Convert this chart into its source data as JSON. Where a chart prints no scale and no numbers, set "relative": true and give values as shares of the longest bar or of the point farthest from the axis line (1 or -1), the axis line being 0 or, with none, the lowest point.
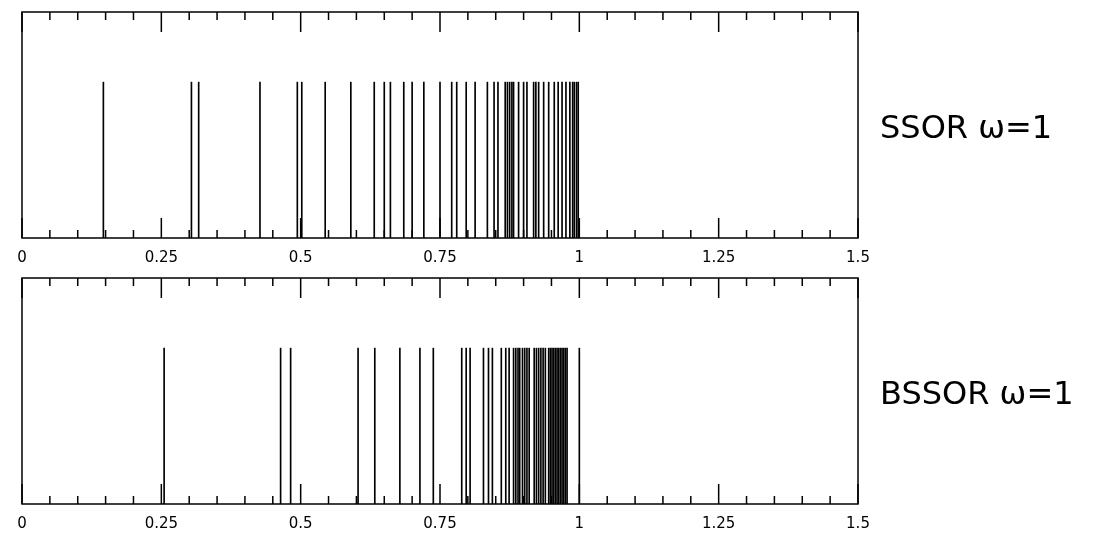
{
  "chart_data": [
    {
      "type": "bar",
      "title": "SSOR ω=1",
      "relative": true,
      "tick_labels": "x",
      "xlim": [
        0,
        1.5
      ],
      "xticks": [
        0,
        {
          "value": 0.05,
          "label": null
        },
        {
          "value": 0.1,
          "label": null
        },
        {
          "value": 0.15,
          "label": null
        },
        {
          "value": 0.2,
          "label": null
        },
        0.25,
        {
          "value": 0.3,
          "label": null
        },
        {
          "value": 0.35,
          "label": null
        },
        {
          "value": 0.4,
          "label": null
        },
        {
          "value": 0.45,
          "label": null
        },
        0.5,
        {
          "value": 0.55,
          "label": null
        },
        {
          "value": 0.6,
          "label": null
        },
        {
          "value": 0.65,
          "label": null
        },
        {
          "value": 0.7,
          "label": null
        },
        0.75,
        {
          "value": 0.8,
          "label": null
        },
        {
          "value": 0.85,
          "label": null
        },
        {
          "value": 0.9,
          "label": null
        },
        {
          "value": 0.95,
          "label": null
        },
        1,
        {
          "value": 1.05,
          "label": null
        },
        {
          "value": 1.1,
          "label": null
        },
        {
          "value": 1.15,
          "label": null
        },
        {
          "value": 1.2,
          "label": null
        },
        1.25,
        {
          "value": 1.3,
          "label": null
        },
        {
          "value": 1.35,
          "label": null
        },
        {
          "value": 1.4,
          "label": null
        },
        {
          "value": 1.45,
          "label": null
        },
        1.5
      ],
      "series": [
        {
          "color": "#000000",
          "x": [
            0.146,
            0.304,
            0.317,
            0.427,
            0.494,
            0.502,
            0.544,
            0.59,
            0.632,
            0.65,
            0.661,
            0.685,
            0.7,
            0.721,
            0.75,
            0.771,
            0.78,
            0.797,
            0.813,
            0.835,
            0.847,
            0.854,
            0.867,
            0.871,
            0.875,
            0.879,
            0.882,
            0.891,
            0.9,
            0.906,
            0.918,
            0.922,
            0.927,
            0.936,
            0.945,
            0.955,
            0.962,
            0.969,
            0.976,
            0.983,
            0.988,
            0.991,
            0.995,
            0.998
          ],
          "values": [
            1,
            1,
            1,
            1,
            1,
            1,
            1,
            1,
            1,
            1,
            1,
            1,
            1,
            1,
            1,
            1,
            1,
            1,
            1,
            1,
            1,
            1,
            1,
            1,
            1,
            1,
            1,
            1,
            1,
            1,
            1,
            1,
            1,
            1,
            1,
            1,
            1,
            1,
            1,
            1,
            1,
            1,
            1,
            1
          ]
        }
      ]
    },
    {
      "type": "bar",
      "title": "BSSOR ω=1",
      "relative": true,
      "tick_labels": "x",
      "xlim": [
        0,
        1.5
      ],
      "xticks": [
        0,
        {
          "value": 0.05,
          "label": null
        },
        {
          "value": 0.1,
          "label": null
        },
        {
          "value": 0.15,
          "label": null
        },
        {
          "value": 0.2,
          "label": null
        },
        0.25,
        {
          "value": 0.3,
          "label": null
        },
        {
          "value": 0.35,
          "label": null
        },
        {
          "value": 0.4,
          "label": null
        },
        {
          "value": 0.45,
          "label": null
        },
        0.5,
        {
          "value": 0.55,
          "label": null
        },
        {
          "value": 0.6,
          "label": null
        },
        {
          "value": 0.65,
          "label": null
        },
        {
          "value": 0.7,
          "label": null
        },
        0.75,
        {
          "value": 0.8,
          "label": null
        },
        {
          "value": 0.85,
          "label": null
        },
        {
          "value": 0.9,
          "label": null
        },
        {
          "value": 0.95,
          "label": null
        },
        1,
        {
          "value": 1.05,
          "label": null
        },
        {
          "value": 1.1,
          "label": null
        },
        {
          "value": 1.15,
          "label": null
        },
        {
          "value": 1.2,
          "label": null
        },
        1.25,
        {
          "value": 1.3,
          "label": null
        },
        {
          "value": 1.35,
          "label": null
        },
        {
          "value": 1.4,
          "label": null
        },
        {
          "value": 1.45,
          "label": null
        },
        1.5
      ],
      "series": [
        {
          "color": "#000000",
          "x": [
            0.255,
            0.464,
            0.482,
            0.603,
            0.633,
            0.678,
            0.714,
            0.738,
            0.789,
            0.797,
            0.804,
            0.828,
            0.837,
            0.844,
            0.86,
            0.868,
            0.874,
            0.882,
            0.886,
            0.89,
            0.893,
            0.898,
            0.902,
            0.906,
            0.91,
            0.919,
            0.923,
            0.927,
            0.931,
            0.935,
            0.939,
            0.945,
            0.948,
            0.951,
            0.954,
            0.957,
            0.96,
            0.963,
            0.966,
            0.969,
            0.972,
            0.975,
            0.978,
            1.0
          ],
          "values": [
            1,
            1,
            1,
            1,
            1,
            1,
            1,
            1,
            1,
            1,
            1,
            1,
            1,
            1,
            1,
            1,
            1,
            1,
            1,
            1,
            1,
            1,
            1,
            1,
            1,
            1,
            1,
            1,
            1,
            1,
            1,
            1,
            1,
            1,
            1,
            1,
            1,
            1,
            1,
            1,
            1,
            1,
            1,
            1
          ]
        }
      ]
    }
  ]
}
